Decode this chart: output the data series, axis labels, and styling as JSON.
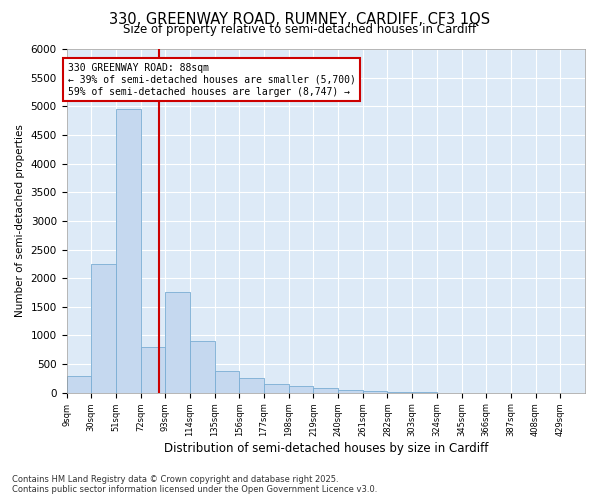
{
  "title_line1": "330, GREENWAY ROAD, RUMNEY, CARDIFF, CF3 1QS",
  "title_line2": "Size of property relative to semi-detached houses in Cardiff",
  "xlabel": "Distribution of semi-detached houses by size in Cardiff",
  "ylabel": "Number of semi-detached properties",
  "footnote1": "Contains HM Land Registry data © Crown copyright and database right 2025.",
  "footnote2": "Contains public sector information licensed under the Open Government Licence v3.0.",
  "bar_color": "#c5d8ef",
  "bar_edge_color": "#7aadd4",
  "background_color": "#ddeaf7",
  "grid_color": "#ffffff",
  "fig_bg_color": "#ffffff",
  "vline_color": "#cc0000",
  "vline_x": 88,
  "annotation_title": "330 GREENWAY ROAD: 88sqm",
  "annotation_line2": "← 39% of semi-detached houses are smaller (5,700)",
  "annotation_line3": "59% of semi-detached houses are larger (8,747) →",
  "categories": [
    "9sqm",
    "30sqm",
    "51sqm",
    "72sqm",
    "93sqm",
    "114sqm",
    "135sqm",
    "156sqm",
    "177sqm",
    "198sqm",
    "219sqm",
    "240sqm",
    "261sqm",
    "282sqm",
    "303sqm",
    "324sqm",
    "345sqm",
    "366sqm",
    "387sqm",
    "408sqm",
    "429sqm"
  ],
  "bin_edges": [
    9,
    30,
    51,
    72,
    93,
    114,
    135,
    156,
    177,
    198,
    219,
    240,
    261,
    282,
    303,
    324,
    345,
    366,
    387,
    408,
    429
  ],
  "values": [
    300,
    2250,
    4950,
    800,
    1750,
    900,
    380,
    260,
    160,
    120,
    90,
    50,
    30,
    20,
    10,
    0,
    0,
    0,
    0,
    0,
    0
  ],
  "ylim": [
    0,
    6000
  ],
  "yticks": [
    0,
    500,
    1000,
    1500,
    2000,
    2500,
    3000,
    3500,
    4000,
    4500,
    5000,
    5500,
    6000
  ]
}
